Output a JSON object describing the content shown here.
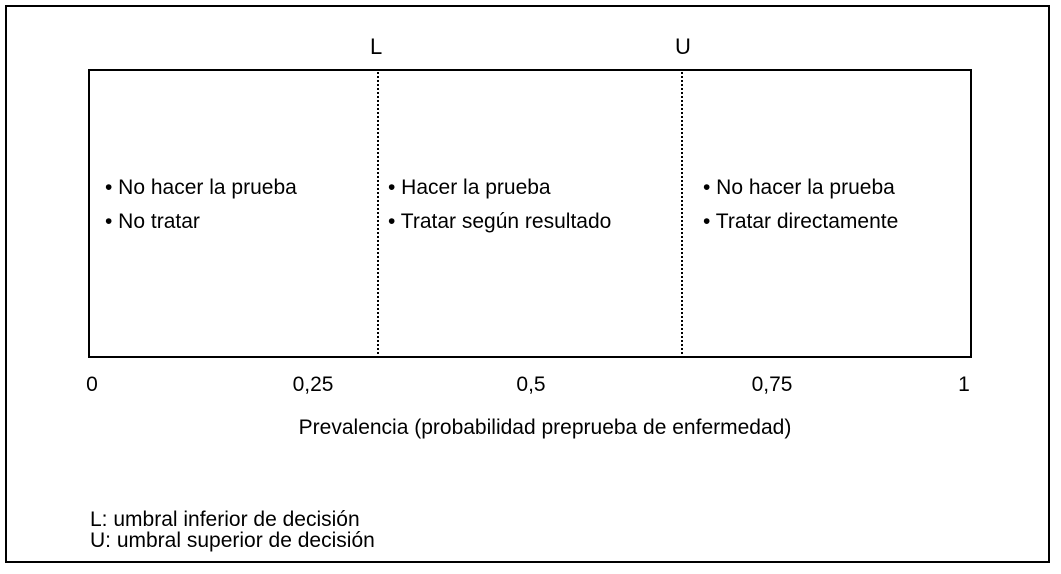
{
  "diagram": {
    "thresholds": {
      "lower_letter": "L",
      "upper_letter": "U"
    },
    "zones": [
      {
        "lines": [
          "• No hacer la prueba",
          "• No tratar"
        ]
      },
      {
        "lines": [
          "• Hacer la prueba",
          "• Tratar según resultado"
        ]
      },
      {
        "lines": [
          "• No hacer la prueba",
          "• Tratar directamente"
        ]
      }
    ],
    "axis": {
      "ticks": [
        "0",
        "0,25",
        "0,5",
        "0,75",
        "1"
      ],
      "label": "Prevalencia (probabilidad preprueba de enfermedad)"
    },
    "legend": [
      "L: umbral inferior de decisión",
      "U: umbral superior de decisión"
    ]
  }
}
